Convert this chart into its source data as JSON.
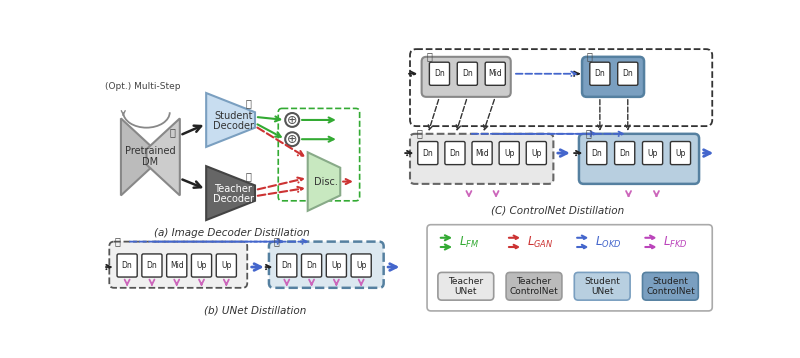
{
  "bg_color": "#ffffff",
  "caption_a": "(a) Image Decoder Distillation",
  "caption_b": "(b) UNet Distillation",
  "caption_c": "(C) ControlNet Distillation",
  "colors": {
    "green": "#33aa33",
    "red": "#cc3333",
    "blue": "#4466cc",
    "purple": "#bb44bb",
    "pink_arrow": "#cc66bb",
    "black": "#222222",
    "gray_arrow": "#888888"
  },
  "legend": {
    "boxes": [
      {
        "label": "Teacher\nUNet",
        "fill": "#e8e8e8",
        "stroke": "#999999"
      },
      {
        "label": "Teacher\nControlNet",
        "fill": "#bbbbbb",
        "stroke": "#999999"
      },
      {
        "label": "Student\nUNet",
        "fill": "#b8cfe0",
        "stroke": "#7a9fc0"
      },
      {
        "label": "Student\nControlNet",
        "fill": "#7a9fc0",
        "stroke": "#5580a0"
      }
    ]
  }
}
